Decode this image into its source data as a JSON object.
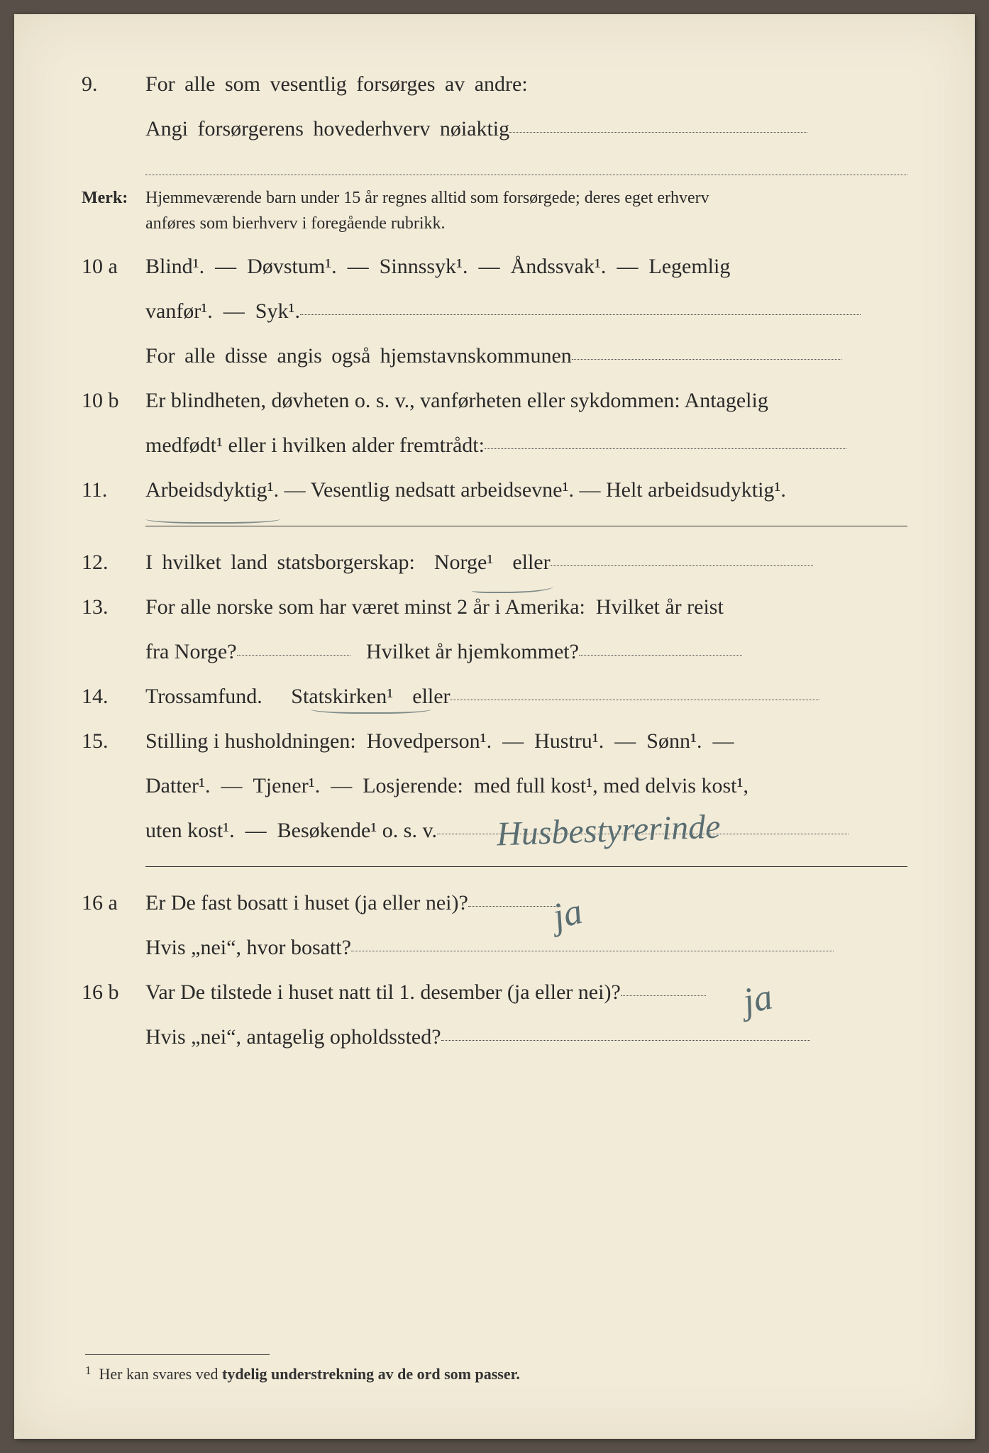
{
  "q9": {
    "num": "9.",
    "line1": "For alle som vesentlig forsørges av andre:",
    "line2_prefix": "Angi forsørgerens hovederhverv nøiaktig"
  },
  "merk": {
    "label": "Merk:",
    "text1": "Hjemmeværende barn under 15 år regnes alltid som forsørgede; deres eget erhverv",
    "text2": "anføres som bierhverv i foregående rubrikk."
  },
  "q10a": {
    "num": "10 a",
    "line1": "Blind¹.  —  Døvstum¹.  —  Sinnssyk¹.  —  Åndssvak¹.  —  Legemlig",
    "line2": "vanfør¹.  —  Syk¹.",
    "line3": "For alle disse angis også hjemstavnskommunen"
  },
  "q10b": {
    "num": "10 b",
    "line1": "Er blindheten, døvheten o. s. v., vanførheten eller sykdommen: Antagelig",
    "line2": "medfødt¹ eller i hvilken alder fremtrådt:"
  },
  "q11": {
    "num": "11.",
    "text": "Arbeidsdyktig¹. — Vesentlig nedsatt arbeidsevne¹. — Helt arbeidsudyktig¹."
  },
  "q12": {
    "num": "12.",
    "text_a": "I hvilket land statsborgerskap:",
    "text_b": "Norge¹",
    "text_c": "eller"
  },
  "q13": {
    "num": "13.",
    "line1": "For alle norske som har været minst 2 år i Amerika:  Hvilket år reist",
    "line2a": "fra Norge?",
    "line2b": "Hvilket år hjemkommet?"
  },
  "q14": {
    "num": "14.",
    "text_a": "Trossamfund.",
    "text_b": "Statskirken¹",
    "text_c": "eller"
  },
  "q15": {
    "num": "15.",
    "line1": "Stilling i husholdningen:  Hovedperson¹.  —  Hustru¹.  —  Sønn¹.  —",
    "line2": "Datter¹.  —  Tjener¹.  —  Losjerende:  med full kost¹, med delvis kost¹,",
    "line3": "uten kost¹.  —  Besøkende¹ o. s. v."
  },
  "q16a": {
    "num": "16 a",
    "line1": "Er De fast bosatt i huset (ja eller nei)?",
    "line2": "Hvis „nei“, hvor bosatt?"
  },
  "q16b": {
    "num": "16 b",
    "line1": "Var De tilstede i huset natt til 1. desember (ja eller nei)?",
    "line2": "Hvis „nei“, antagelig opholdssted?"
  },
  "handwriting": {
    "q15_answer": "Husbestyrerinde",
    "q16a_answer": "ja",
    "q16b_answer": "ja"
  },
  "footnote": {
    "marker": "1",
    "text_a": "Her kan svares ved",
    "text_b": "tydelig understrekning av de ord som passer."
  },
  "colors": {
    "paper": "#f2ebd8",
    "ink": "#2a2a2a",
    "pen": "#5a6e72"
  }
}
